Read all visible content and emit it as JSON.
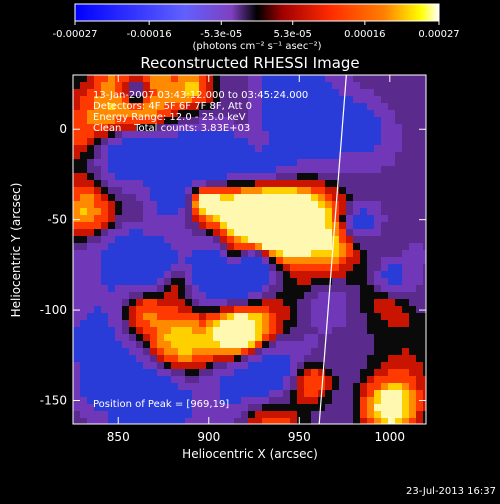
{
  "chart_data": {
    "type": "heatmap",
    "title": "Reconstructed RHESSI Image",
    "xlabel": "Heliocentric X (arcsec)",
    "ylabel": "Heliocentric Y (arcsec)",
    "xlim": [
      825,
      1020
    ],
    "ylim": [
      -163,
      30
    ],
    "x_ticks": [
      {
        "value": 850,
        "label": "850"
      },
      {
        "value": 900,
        "label": "900"
      },
      {
        "value": 950,
        "label": "950"
      },
      {
        "value": 1000,
        "label": "1000"
      }
    ],
    "y_ticks": [
      {
        "value": 0,
        "label": "0"
      },
      {
        "value": -50,
        "label": "-50"
      },
      {
        "value": -100,
        "label": "-100"
      },
      {
        "value": -150,
        "label": "-150"
      }
    ],
    "colorbar": {
      "range": [
        -0.00027,
        0.00027
      ],
      "tick_labels": [
        "-0.00027",
        "-0.00016",
        "-5.3e-05",
        "5.3e-05",
        "0.00016",
        "0.00027"
      ],
      "tick_values": [
        -0.00027,
        -0.00016,
        -5.3e-05,
        5.3e-05,
        0.00016,
        0.00027
      ],
      "unit_label": "(photons cm⁻² s⁻¹ asec⁻²)"
    },
    "annotations": {
      "time": "13-Jan-2007 03:43:12.000 to 03:45:24.000",
      "detectors": "Detectors: 4F 5F 6F 7F 8F, Att 0",
      "energy": "Energy Range: 12.0 - 25.0 keV",
      "clean": "Clean    Total counts: 3.83E+03",
      "peak": "Position of Peak = [969,19]"
    },
    "limb_line": {
      "x": [
        961,
        976
      ],
      "y": [
        -163,
        30
      ]
    },
    "colors": {
      "low": "#0000ff",
      "mid_low": "#7f40c0",
      "zero": "#000000",
      "mid_high": "#ff2a00",
      "high": "#ffffff"
    }
  },
  "footer": {
    "date_stamp": "23-Jul-2013 16:37"
  }
}
